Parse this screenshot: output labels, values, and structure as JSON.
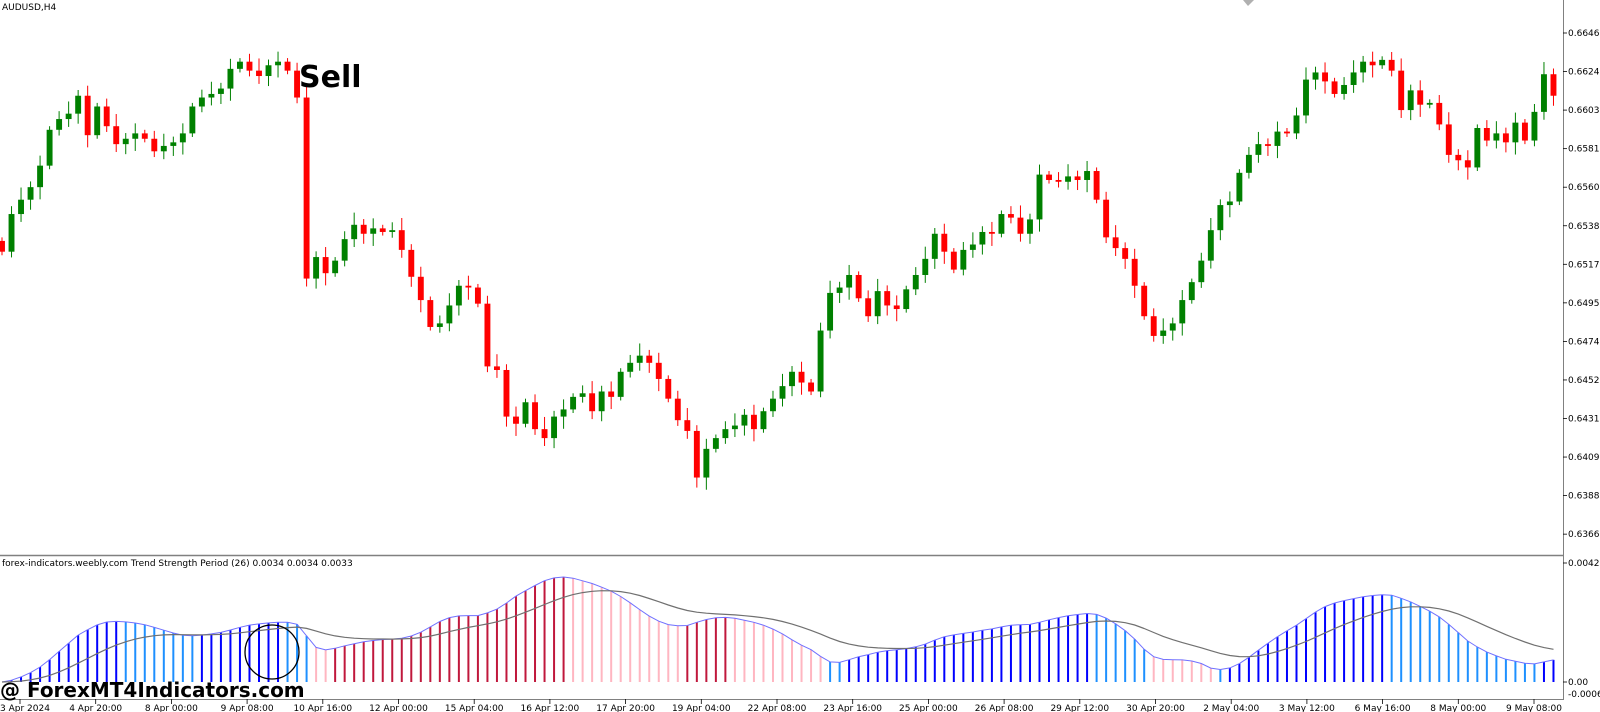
{
  "chart": {
    "symbol": "AUDUSD,H4",
    "annotation": "Sell",
    "watermark": "@ ForexMT4Indicators.com",
    "price_ticks": [
      "0.66460",
      "0.66245",
      "0.66030",
      "0.65815",
      "0.65600",
      "0.65385",
      "0.65170",
      "0.64955",
      "0.64740",
      "0.64525",
      "0.64310",
      "0.64095",
      "0.63880",
      "0.63665"
    ],
    "date_ticks": [
      "3 Apr 2024",
      "4 Apr 20:00",
      "8 Apr 00:00",
      "9 Apr 08:00",
      "10 Apr 16:00",
      "12 Apr 00:00",
      "15 Apr 04:00",
      "16 Apr 12:00",
      "17 Apr 20:00",
      "19 Apr 04:00",
      "22 Apr 08:00",
      "23 Apr 16:00",
      "25 Apr 00:00",
      "26 Apr 08:00",
      "29 Apr 12:00",
      "30 Apr 20:00",
      "2 May 04:00",
      "3 May 12:00",
      "6 May 16:00",
      "8 May 00:00",
      "9 May 08:00"
    ],
    "indicator": {
      "title": "forex-indicators.weebly.com Trend Strength Period (26) 0.0034 0.0034 0.0033",
      "scale_ticks": [
        "0.0042",
        "0.00",
        "-0.0006"
      ]
    },
    "colors": {
      "bull": "#008000",
      "bear": "#ff0000",
      "hist_blue": "#0000ff",
      "hist_red": "#c0183c",
      "hist_pink": "#ffb6c1",
      "hist_cyan": "#1e90ff"
    }
  },
  "chart_data": {
    "type": "candlestick",
    "symbol": "AUDUSD",
    "timeframe": "H4",
    "price_range": [
      0.6363,
      0.6656
    ],
    "closes": [
      0.6524,
      0.6545,
      0.6553,
      0.656,
      0.6572,
      0.6592,
      0.6598,
      0.6601,
      0.6611,
      0.6589,
      0.6605,
      0.6594,
      0.6584,
      0.6587,
      0.659,
      0.6587,
      0.658,
      0.6583,
      0.6585,
      0.659,
      0.6605,
      0.661,
      0.6612,
      0.6615,
      0.6626,
      0.663,
      0.6625,
      0.6622,
      0.6628,
      0.663,
      0.6625,
      0.661,
      0.6509,
      0.6521,
      0.6512,
      0.6519,
      0.6531,
      0.6539,
      0.6534,
      0.6537,
      0.6535,
      0.6536,
      0.6525,
      0.651,
      0.6497,
      0.6482,
      0.6484,
      0.6494,
      0.6505,
      0.6504,
      0.6495,
      0.646,
      0.6458,
      0.6432,
      0.6428,
      0.644,
      0.6425,
      0.642,
      0.6432,
      0.6436,
      0.6443,
      0.6445,
      0.6435,
      0.6446,
      0.6443,
      0.6457,
      0.6462,
      0.6466,
      0.6462,
      0.6453,
      0.6442,
      0.643,
      0.6424,
      0.6398,
      0.6414,
      0.642,
      0.6425,
      0.6427,
      0.6433,
      0.6425,
      0.6435,
      0.6442,
      0.6449,
      0.6457,
      0.6451,
      0.6446,
      0.648,
      0.6501,
      0.6504,
      0.6511,
      0.6498,
      0.6488,
      0.6502,
      0.6494,
      0.6492,
      0.6503,
      0.6511,
      0.652,
      0.6534,
      0.6524,
      0.6514,
      0.6525,
      0.6528,
      0.6535,
      0.6534,
      0.6545,
      0.6543,
      0.6534,
      0.6542,
      0.6567,
      0.6564,
      0.6563,
      0.6566,
      0.6564,
      0.6569,
      0.6553,
      0.6532,
      0.6526,
      0.652,
      0.6505,
      0.6488,
      0.6477,
      0.648,
      0.6484,
      0.6497,
      0.6507,
      0.6519,
      0.6536,
      0.655,
      0.6552,
      0.6568,
      0.6578,
      0.6584,
      0.6583,
      0.6591,
      0.659,
      0.66,
      0.662,
      0.6624,
      0.6619,
      0.6612,
      0.6617,
      0.6624,
      0.663,
      0.6628,
      0.6631,
      0.6625,
      0.6603,
      0.6614,
      0.6606,
      0.6607,
      0.6595,
      0.6578,
      0.6575,
      0.6571,
      0.6593,
      0.6586,
      0.659,
      0.6585,
      0.6596,
      0.6586,
      0.6602,
      0.6623,
      0.6611
    ],
    "indicator": {
      "name": "Trend Strength",
      "period": 26,
      "values": [
        0.0034,
        0.0034,
        0.0033
      ]
    }
  }
}
